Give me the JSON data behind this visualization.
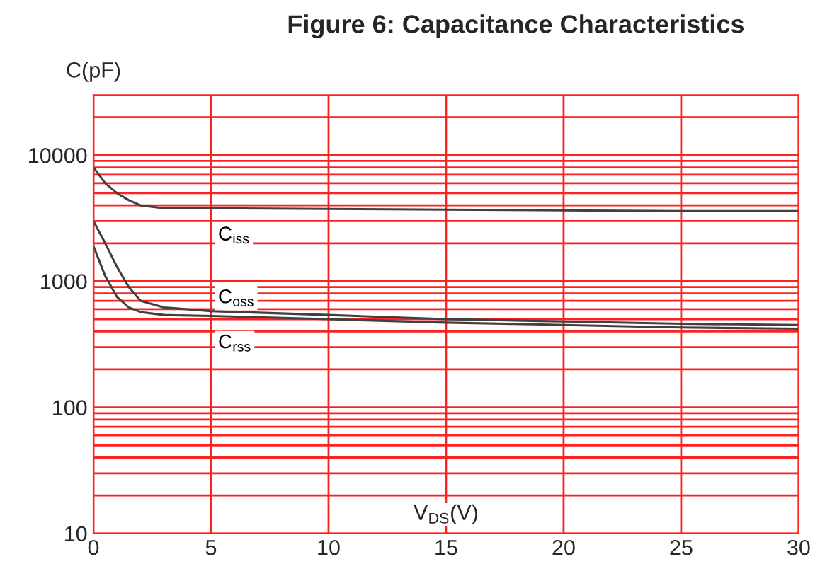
{
  "chart_data": {
    "type": "line",
    "title": "Figure 6: Capacitance Characteristics",
    "ylabel": "C(pF)",
    "xlabel": "V$_{DS}$(V)",
    "x": [
      0,
      0.5,
      1,
      1.5,
      2,
      3,
      5,
      10,
      15,
      20,
      25,
      30
    ],
    "series": [
      {
        "name": "C$_{iss}$",
        "color": "#404040",
        "values": [
          8000,
          6000,
          5000,
          4400,
          4000,
          3800,
          3800,
          3750,
          3700,
          3650,
          3600,
          3600
        ]
      },
      {
        "name": "C$_{oss}$",
        "color": "#404040",
        "values": [
          3000,
          2000,
          1300,
          900,
          700,
          620,
          580,
          540,
          500,
          480,
          460,
          450
        ]
      },
      {
        "name": "C$_{rss}$",
        "color": "#404040",
        "values": [
          1900,
          1100,
          750,
          620,
          570,
          540,
          530,
          500,
          470,
          450,
          430,
          420
        ]
      }
    ],
    "log": "y",
    "xlim": [
      0,
      30
    ],
    "ylim": [
      10,
      30000
    ],
    "xticks": [
      0,
      5,
      10,
      15,
      20,
      25,
      30
    ],
    "yticks": [
      10,
      100,
      1000,
      10000
    ],
    "grid": true,
    "legend": false,
    "marker": "none",
    "line_style": "solid"
  }
}
